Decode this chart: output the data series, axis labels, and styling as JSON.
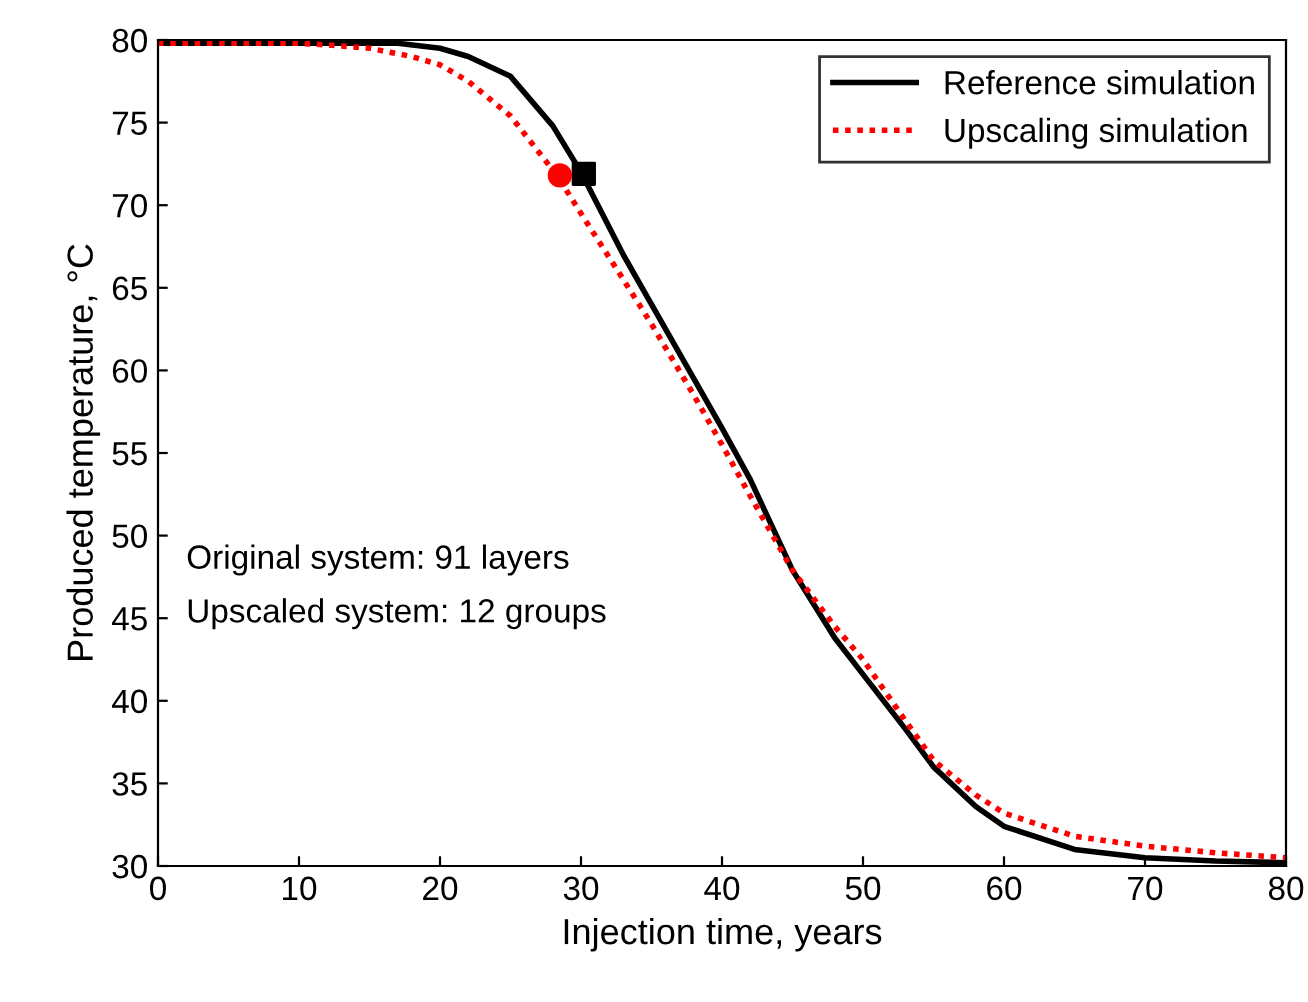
{
  "chart_data": {
    "type": "line",
    "xlabel": "Injection time, years",
    "ylabel": "Produced temperature, °C",
    "xlim": [
      0,
      80
    ],
    "ylim": [
      30,
      80
    ],
    "xticks": [
      0,
      10,
      20,
      30,
      40,
      50,
      60,
      70,
      80
    ],
    "yticks": [
      30,
      35,
      40,
      45,
      50,
      55,
      60,
      65,
      70,
      75,
      80
    ],
    "grid": false,
    "legend": "top right",
    "annotations": [
      "Original system: 91 layers",
      "Upscaled system: 12 groups"
    ],
    "series": [
      {
        "name": "Reference simulation",
        "color": "#000000",
        "line_style": "solid",
        "marker": "none",
        "x": [
          0,
          10,
          15,
          17,
          20,
          22,
          25,
          28,
          30,
          33,
          35,
          38,
          40,
          42,
          45,
          48,
          50,
          53,
          55,
          58,
          60,
          65,
          70,
          75,
          80
        ],
        "values": [
          79.8,
          79.8,
          79.8,
          79.8,
          79.5,
          79.0,
          77.8,
          74.8,
          72.0,
          67.0,
          64.0,
          59.5,
          56.5,
          53.4,
          47.9,
          43.8,
          41.6,
          38.3,
          36.0,
          33.6,
          32.4,
          31.0,
          30.5,
          30.3,
          30.2
        ]
      },
      {
        "name": "Upscaling simulation",
        "color": "#ff0000",
        "line_style": "dotted",
        "marker": "none",
        "x": [
          0,
          10,
          12,
          15,
          18,
          20,
          22,
          25,
          28.3,
          30,
          33,
          35,
          38,
          40,
          42,
          45,
          48,
          50,
          53,
          55,
          58,
          60,
          65,
          70,
          75,
          80
        ],
        "values": [
          79.8,
          79.8,
          79.7,
          79.5,
          79.0,
          78.5,
          77.5,
          75.4,
          71.8,
          69.5,
          65.5,
          62.8,
          58.5,
          55.5,
          52.4,
          47.9,
          44.5,
          42.5,
          38.8,
          36.4,
          34.3,
          33.2,
          31.8,
          31.2,
          30.8,
          30.5
        ]
      },
      {
        "type": "scatter",
        "color": "#000000",
        "marker": "square",
        "x": [
          30.2
        ],
        "values": [
          71.9
        ]
      },
      {
        "type": "scatter",
        "color": "#ff0000",
        "marker": "circle",
        "x": [
          28.5
        ],
        "values": [
          71.8
        ]
      }
    ]
  }
}
